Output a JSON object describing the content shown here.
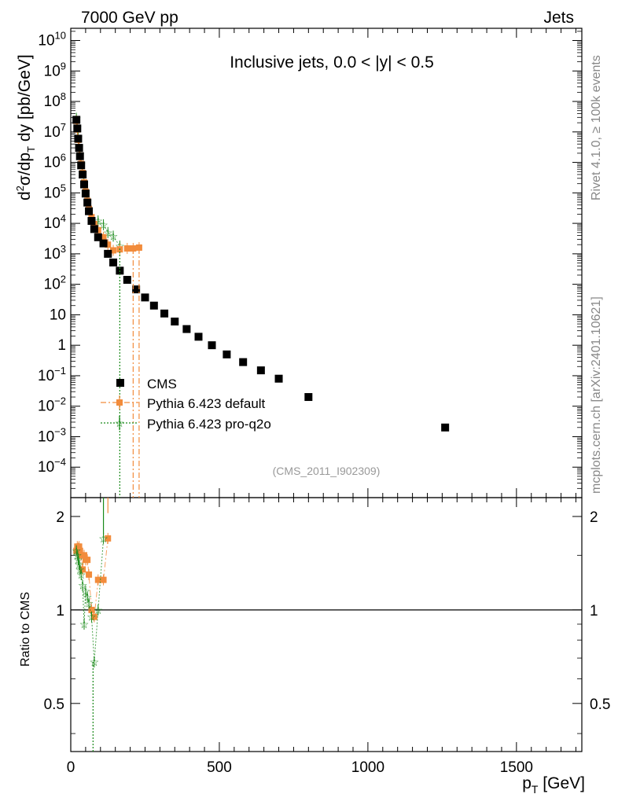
{
  "header": {
    "left": "7000 GeV pp",
    "right": "Jets"
  },
  "side_labels": {
    "rivet": "Rivet 4.1.0, ≥ 100k events",
    "mcplots": "mcplots.cern.ch [arXiv:2401.10621]"
  },
  "colors": {
    "cms": "#000000",
    "pythia_default": "#f28c3c",
    "pythia_proq2o": "#1a8a1a",
    "watermark": "#999999",
    "side_text": "#888888"
  },
  "chart_data": [
    {
      "type": "scatter",
      "id": "main",
      "title": "Inclusive jets, 0.0 < |y| < 0.5",
      "watermark": "(CMS_2011_I902309)",
      "ylabel": "d²σ/dp_T dy [pb/GeV]",
      "xlim": [
        0,
        1720
      ],
      "ylim_log10": [
        -5.0,
        10.4
      ],
      "ytick_labels": [
        "10^-4",
        "10^-3",
        "10^-2",
        "10^-1",
        "1",
        "10",
        "10^2",
        "10^3",
        "10^4",
        "10^5",
        "10^6",
        "10^7",
        "10^8",
        "10^9",
        "10^10"
      ],
      "legend": [
        "CMS",
        "Pythia 6.423 default",
        "Pythia 6.423 pro-q2o"
      ],
      "legend_position": "bottom-left",
      "series": [
        {
          "name": "CMS",
          "x": [
            19,
            22,
            25,
            28,
            31,
            35,
            40,
            45,
            50,
            56,
            61,
            70,
            79,
            92,
            110,
            125,
            143,
            165,
            190,
            220,
            250,
            280,
            315,
            350,
            390,
            430,
            475,
            525,
            580,
            640,
            700,
            800,
            1260
          ],
          "y": [
            25000000.0,
            13000000.0,
            6000000.0,
            3000000.0,
            1600000.0,
            800000.0,
            400000.0,
            190000.0,
            95000.0,
            48000.0,
            25000.0,
            12000.0,
            6500.0,
            3500.0,
            2200.0,
            1000.0,
            520.0,
            280.0,
            140.0,
            68.0,
            37.0,
            20.0,
            11.0,
            6.0,
            3.4,
            1.9,
            1.0,
            0.5,
            0.28,
            0.15,
            0.08,
            0.02,
            0.002
          ]
        },
        {
          "name": "Pythia 6.423 default",
          "x": [
            19,
            22,
            25,
            28,
            31,
            35,
            40,
            45,
            50,
            56,
            61,
            70,
            79,
            92,
            110,
            125,
            143,
            165,
            190,
            210,
            230
          ],
          "y": [
            23000000.0,
            12000000.0,
            5500000.0,
            3000000.0,
            1700000.0,
            900000.0,
            450000.0,
            220000.0,
            110000.0,
            55000.0,
            30000.0,
            16000.0,
            9500.0,
            6000.0,
            3500.0,
            2000.0,
            1300.0,
            1400.0,
            1500.0,
            1500.0,
            1600.0
          ]
        },
        {
          "name": "Pythia 6.423 pro-q2o",
          "x": [
            19,
            22,
            25,
            28,
            31,
            35,
            40,
            45,
            50,
            56,
            61,
            70,
            79,
            92,
            110,
            125,
            143,
            165
          ],
          "y": [
            28000000.0,
            14000000.0,
            6800000.0,
            3300000.0,
            1800000.0,
            900000.0,
            460000.0,
            210000.0,
            110000.0,
            53000.0,
            28000.0,
            13000.0,
            8000.0,
            12000.0,
            9000.0,
            5000.0,
            3800.0,
            1800.0
          ]
        }
      ]
    },
    {
      "type": "scatter",
      "id": "ratio",
      "ylabel": "Ratio to CMS",
      "xlabel": "p_T [GeV]",
      "xlim": [
        0,
        1720
      ],
      "ylim": [
        0.35,
        2.3
      ],
      "ytick_labels": [
        "0.5",
        "1",
        "2"
      ],
      "xtick_labels": [
        "0",
        "500",
        "1000",
        "1500"
      ],
      "reference_line": 1,
      "series": [
        {
          "name": "Pythia 6.423 default",
          "x": [
            19,
            22,
            25,
            28,
            31,
            35,
            40,
            45,
            50,
            56,
            61,
            70,
            79,
            92,
            110,
            125
          ],
          "y": [
            1.55,
            1.6,
            1.58,
            1.6,
            1.55,
            1.5,
            1.35,
            1.5,
            1.45,
            1.45,
            1.3,
            1.0,
            0.95,
            1.25,
            1.25,
            1.7
          ]
        },
        {
          "name": "Pythia 6.423 pro-q2o",
          "x": [
            19,
            22,
            25,
            28,
            31,
            35,
            40,
            45,
            50,
            56,
            61,
            70,
            79,
            92,
            110
          ],
          "y": [
            1.55,
            1.5,
            1.45,
            1.4,
            1.35,
            1.3,
            1.2,
            0.9,
            1.15,
            1.1,
            1.05,
            0.95,
            0.68,
            1.0,
            1.7
          ]
        }
      ]
    }
  ]
}
